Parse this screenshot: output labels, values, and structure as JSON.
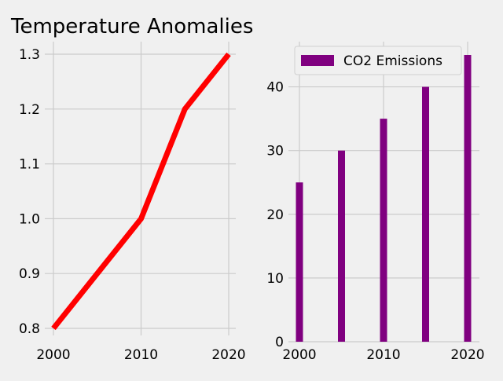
{
  "chart_data": [
    {
      "type": "line",
      "title": "Temperature Anomalies",
      "xlabel": "",
      "ylabel": "",
      "x": [
        2000,
        2005,
        2010,
        2015,
        2020
      ],
      "series": [
        {
          "values": [
            0.8,
            0.9,
            1.0,
            1.2,
            1.3
          ],
          "color": "#ff0000"
        }
      ],
      "xlim": [
        2000,
        2020
      ],
      "ylim": [
        0.8,
        1.3
      ],
      "xticks": [
        "2000",
        "2010",
        "2020"
      ],
      "yticks": [
        "0.8",
        "0.9",
        "1.0",
        "1.1",
        "1.2",
        "1.3"
      ],
      "grid": true
    },
    {
      "type": "bar",
      "title": "",
      "xlabel": "",
      "ylabel": "",
      "categories": [
        2000,
        2005,
        2010,
        2015,
        2020
      ],
      "series": [
        {
          "name": "CO2 Emissions",
          "values": [
            25,
            30,
            35,
            40,
            45
          ],
          "color": "#800080"
        }
      ],
      "xlim": [
        2000,
        2020
      ],
      "ylim": [
        0,
        45
      ],
      "xticks": [
        "2000",
        "2010",
        "2020"
      ],
      "yticks": [
        "0",
        "10",
        "20",
        "30",
        "40"
      ],
      "legend": "top-right",
      "grid": true
    }
  ]
}
